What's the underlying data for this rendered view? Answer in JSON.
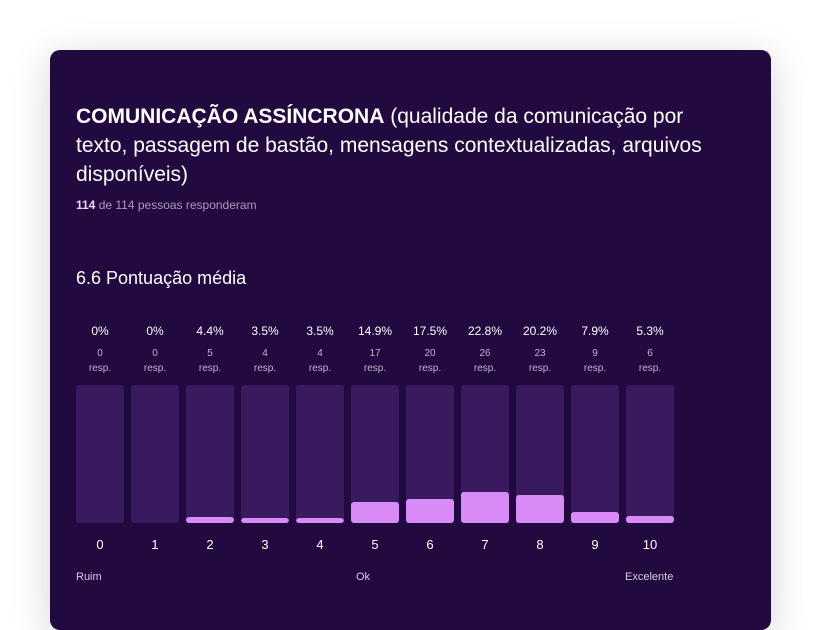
{
  "question": {
    "title_bold": "COMUNICAÇÃO ASSÍNCRONA",
    "title_rest": " (qualidade da comunicação por texto, passagem de bastão, mensagens contextualizadas, arquivos disponíveis)",
    "responded_count": "114",
    "responded_text": " de 114 pessoas responderam",
    "average_label": "6.6 Pontuação média"
  },
  "chart_data": {
    "type": "bar",
    "categories": [
      "0",
      "1",
      "2",
      "3",
      "4",
      "5",
      "6",
      "7",
      "8",
      "9",
      "10"
    ],
    "values": [
      0,
      0,
      4.4,
      3.5,
      3.5,
      14.9,
      17.5,
      22.8,
      20.2,
      7.9,
      5.3
    ],
    "value_labels": [
      "0%",
      "0%",
      "4.4%",
      "3.5%",
      "3.5%",
      "14.9%",
      "17.5%",
      "22.8%",
      "20.2%",
      "7.9%",
      "5.3%"
    ],
    "counts": [
      0,
      0,
      5,
      4,
      4,
      17,
      20,
      26,
      23,
      9,
      6
    ],
    "count_unit": "resp.",
    "ylim": [
      0,
      100
    ],
    "scale_labels": {
      "low": "Ruim",
      "mid": "Ok",
      "high": "Excelente"
    },
    "colors": {
      "fill": "#d88af7",
      "track": "#3a1a5e",
      "background": "#22093f"
    }
  }
}
